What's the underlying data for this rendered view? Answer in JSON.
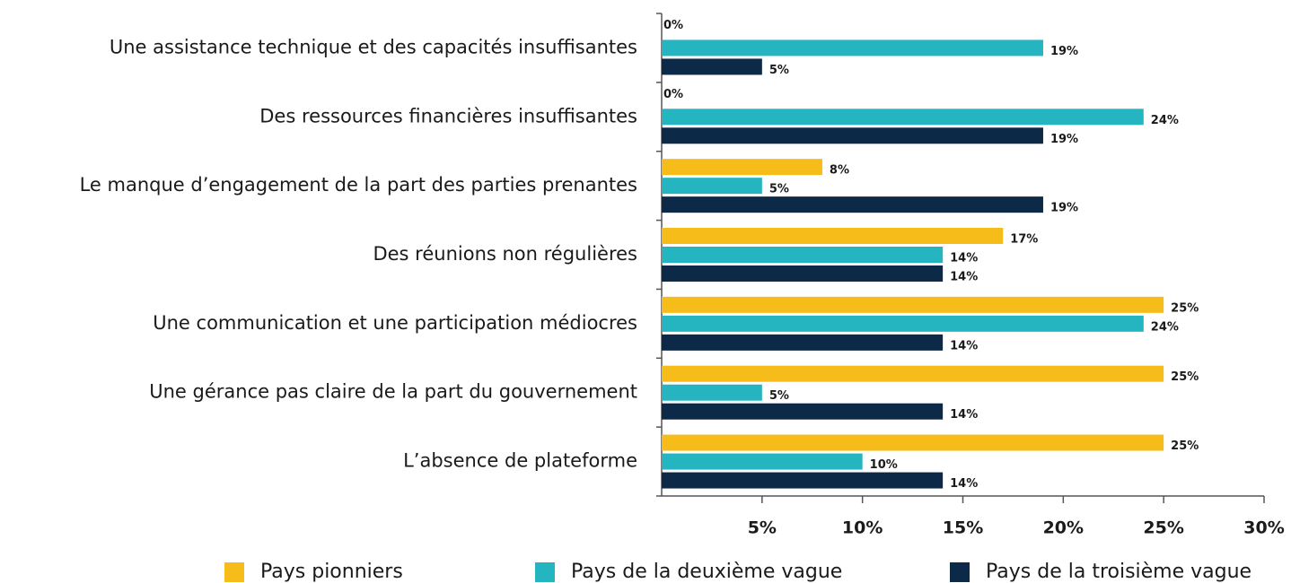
{
  "chart_data": {
    "type": "hbar",
    "categories": [
      "Une assistance technique et des capacités insuffisantes",
      "Des ressources financières insuffisantes",
      "Le manque d’engagement de la part des parties prenantes",
      "Des réunions non régulières",
      "Une communication et une participation médiocres",
      "Une gérance pas claire de la part du gouvernement",
      "L’absence de plateforme"
    ],
    "series": [
      {
        "name": "Pays pionniers",
        "color": "#f6bd1a",
        "values": [
          0,
          0,
          8,
          17,
          25,
          25,
          25
        ],
        "value_labels": [
          "0%",
          "0%",
          "8%",
          "17%",
          "25%",
          "25%",
          "25%"
        ]
      },
      {
        "name": "Pays de la deuxième vague",
        "color": "#25b5c0",
        "values": [
          19,
          24,
          5,
          14,
          24,
          5,
          10
        ],
        "value_labels": [
          "19%",
          "24%",
          "5%",
          "14%",
          "24%",
          "5%",
          "10%"
        ]
      },
      {
        "name": "Pays de la troisième vague",
        "color": "#0c2a47",
        "values": [
          5,
          19,
          19,
          14,
          14,
          14,
          14
        ],
        "value_labels": [
          "5%",
          "19%",
          "19%",
          "14%",
          "14%",
          "14%",
          "14%"
        ]
      }
    ],
    "xlim": [
      0,
      30
    ],
    "xticks": [
      {
        "value": 5,
        "label": "5%"
      },
      {
        "value": 10,
        "label": "10%"
      },
      {
        "value": 15,
        "label": "15%"
      },
      {
        "value": 20,
        "label": "20%"
      },
      {
        "value": 25,
        "label": "25%"
      },
      {
        "value": 30,
        "label": "30%"
      }
    ],
    "legend": "bottom"
  }
}
